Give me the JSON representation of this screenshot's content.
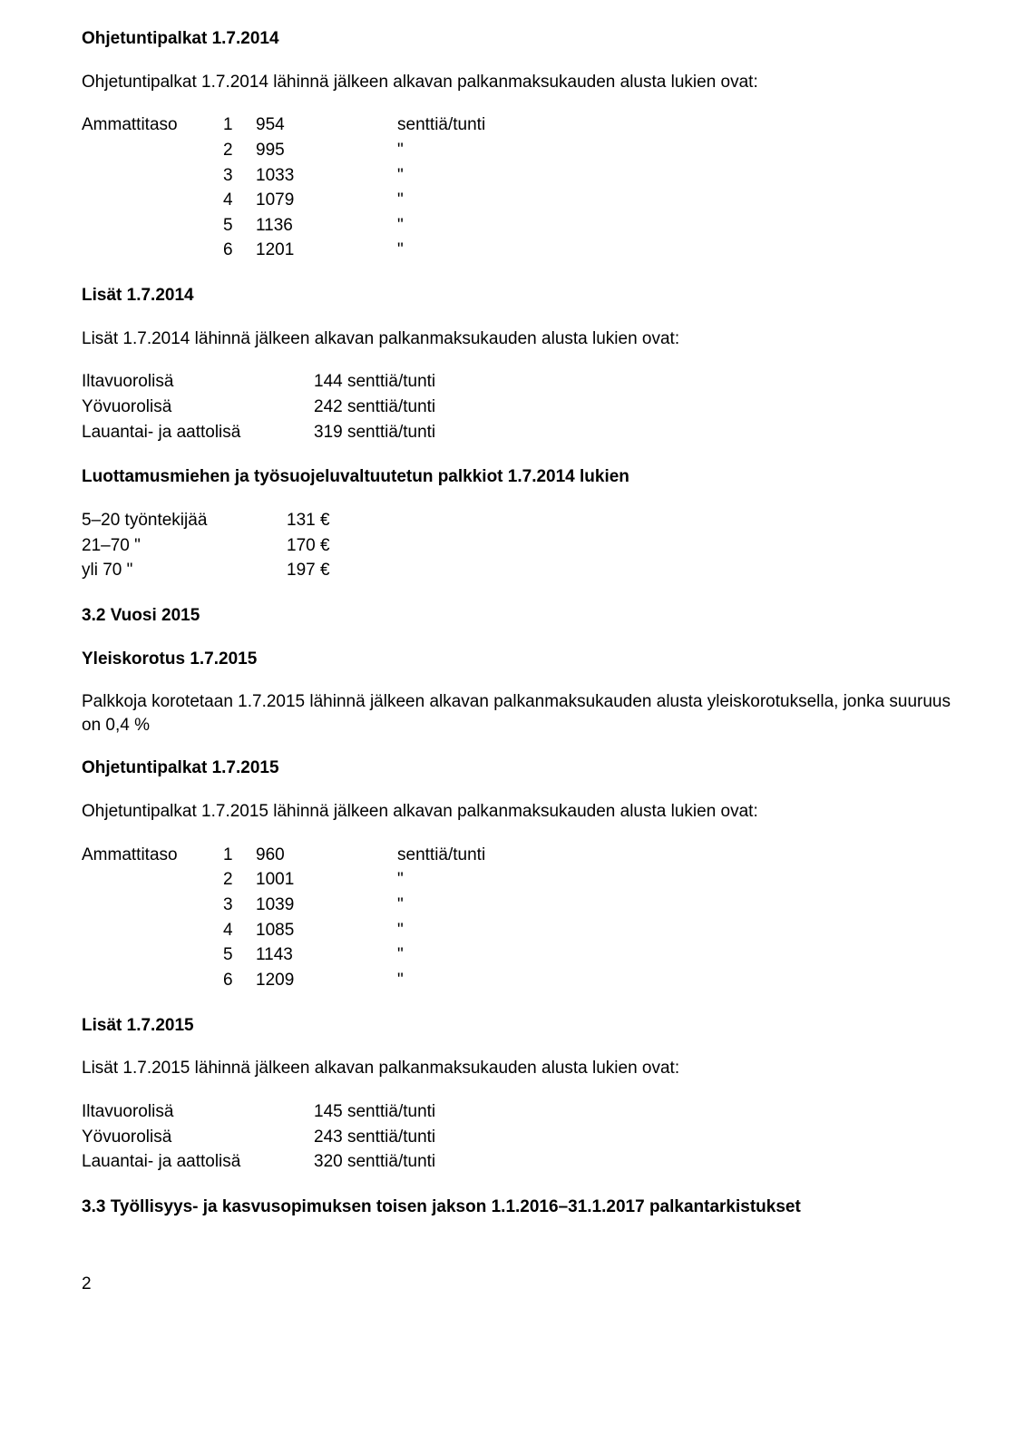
{
  "sec2014": {
    "heading_ohje": "Ohjetuntipalkat 1.7.2014",
    "intro_ohje": "Ohjetuntipalkat 1.7.2014 lähinnä jälkeen alkavan palkanmaksukauden alusta lukien ovat:",
    "ammattitaso_label": "Ammattitaso",
    "unit_label": "senttiä/tunti",
    "ditto": "\"",
    "rows": [
      {
        "n": "1",
        "v": "954"
      },
      {
        "n": "2",
        "v": "995"
      },
      {
        "n": "3",
        "v": "1033"
      },
      {
        "n": "4",
        "v": "1079"
      },
      {
        "n": "5",
        "v": "1136"
      },
      {
        "n": "6",
        "v": "1201"
      }
    ],
    "heading_lisat": "Lisät 1.7.2014",
    "intro_lisat": "Lisät 1.7.2014 lähinnä jälkeen alkavan palkanmaksukauden alusta lukien ovat:",
    "lisat": [
      {
        "label": "Iltavuorolisä",
        "value": "144 senttiä/tunti"
      },
      {
        "label": "Yövuorolisä",
        "value": "242 senttiä/tunti"
      },
      {
        "label": "Lauantai- ja aattolisä",
        "value": "319 senttiä/tunti"
      }
    ],
    "heading_luotto": "Luottamusmiehen ja työsuojeluvaltuutetun palkkiot 1.7.2014 lukien",
    "emp_rows": [
      {
        "range": "5–20 työntekijää",
        "amount": "131 €"
      },
      {
        "range": "21–70       \"",
        "amount": "170 €"
      },
      {
        "range": "yli 70         \"",
        "amount": "197 €"
      }
    ]
  },
  "sec2015": {
    "heading_vuosi": "3.2 Vuosi 2015",
    "heading_yleis": "Yleiskorotus 1.7.2015",
    "text_yleis": "Palkkoja korotetaan 1.7.2015 lähinnä jälkeen alkavan palkanmaksukauden alusta yleiskorotuksella, jonka suuruus on 0,4 %",
    "heading_ohje": "Ohjetuntipalkat 1.7.2015",
    "intro_ohje": "Ohjetuntipalkat 1.7.2015 lähinnä jälkeen alkavan palkanmaksukauden alusta lukien ovat:",
    "ammattitaso_label": "Ammattitaso",
    "unit_label": "senttiä/tunti",
    "ditto": "\"",
    "rows": [
      {
        "n": "1",
        "v": "960"
      },
      {
        "n": "2",
        "v": "1001"
      },
      {
        "n": "3",
        "v": "1039"
      },
      {
        "n": "4",
        "v": "1085"
      },
      {
        "n": "5",
        "v": "1143"
      },
      {
        "n": "6",
        "v": "1209"
      }
    ],
    "heading_lisat": "Lisät 1.7.2015",
    "intro_lisat": "Lisät 1.7.2015 lähinnä jälkeen alkavan palkanmaksukauden alusta lukien ovat:",
    "lisat": [
      {
        "label": "Iltavuorolisä",
        "value": "145 senttiä/tunti"
      },
      {
        "label": "Yövuorolisä",
        "value": "243 senttiä/tunti"
      },
      {
        "label": "Lauantai- ja aattolisä",
        "value": "320 senttiä/tunti"
      }
    ],
    "heading_33": "3.3 Työllisyys- ja kasvusopimuksen toisen jakson 1.1.2016–31.1.2017 palkantarkistukset"
  },
  "page_number": "2"
}
